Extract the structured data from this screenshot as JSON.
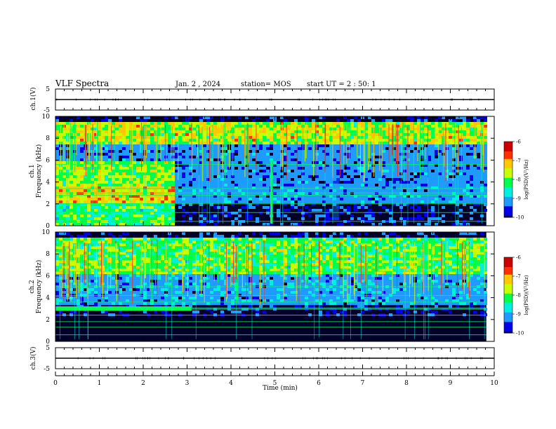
{
  "header": {
    "title": "VLF Spectra",
    "date": "Jan. 2 , 2024",
    "station": "station= MOS",
    "start_ut": "start UT =  2 : 50: 1"
  },
  "colors": {
    "background": "#00002a",
    "colormap": [
      "#00004d",
      "#0000e6",
      "#1f9bff",
      "#00f0e0",
      "#00ff4a",
      "#c8ff00",
      "#ffc800",
      "#ff3000",
      "#cc0000",
      "#ffffff"
    ]
  },
  "chart_data": [
    {
      "type": "line",
      "id": "ch1-voltage",
      "ylabel": "ch.1(V)",
      "ylim": [
        -5,
        5
      ],
      "yticks": [
        "5",
        "-5"
      ],
      "x": [
        0,
        10
      ],
      "values": [
        0,
        0
      ],
      "xlim": [
        0,
        10
      ]
    },
    {
      "type": "heatmap",
      "id": "ch1-spectrogram",
      "ylabel_top": "ch.1",
      "ylabel": "Frequency (kHz)",
      "xlim": [
        0,
        9.82
      ],
      "ylim": [
        0,
        10
      ],
      "yticks": [
        "0",
        "2",
        "4",
        "6",
        "8",
        "10"
      ],
      "colorbar": {
        "label": "log(PSD)(V²/Hz)",
        "range": [
          -10,
          -6
        ],
        "ticks": [
          "-6",
          "-7",
          "-8",
          "-9",
          "-10"
        ]
      },
      "features": {
        "hiss_band_khz": [
          7.5,
          9.5
        ],
        "broadband_noise_until_min": 2.7,
        "noise_band_khz": [
          2.3,
          3.7
        ],
        "vertical_burst_min": 4.92,
        "lines_khz": [
          0.4,
          1.2,
          2.0,
          2.8,
          3.0,
          3.4,
          5.6
        ]
      }
    },
    {
      "type": "heatmap",
      "id": "ch2-spectrogram",
      "ylabel_top": "ch.2",
      "ylabel": "Frequency (kHz)",
      "xlim": [
        0,
        9.82
      ],
      "ylim": [
        0,
        10
      ],
      "yticks": [
        "0",
        "2",
        "4",
        "6",
        "8",
        "10"
      ],
      "colorbar": {
        "label": "log(PSD)(V²/Hz)",
        "range": [
          -10,
          -6
        ],
        "ticks": [
          "-6",
          "-7",
          "-8",
          "-9",
          "-10"
        ]
      },
      "features": {
        "hiss_band_khz": [
          6.3,
          9.5
        ],
        "band_3khz_strong_until_min": 3.1,
        "band_khz": [
          2.8,
          3.2
        ],
        "lines_khz": [
          0.6,
          1.3,
          1.8,
          2.4,
          3.6,
          4.2,
          5.0,
          6.4
        ]
      }
    },
    {
      "type": "line",
      "id": "ch3-voltage",
      "ylabel": "ch.3(V)",
      "ylim": [
        -5,
        5
      ],
      "yticks": [
        "5",
        "-5"
      ],
      "x": [
        0,
        10
      ],
      "values": [
        0,
        0
      ],
      "xlim": [
        0,
        10
      ]
    }
  ],
  "xaxis": {
    "label": "Time (min)",
    "ticks": [
      "0",
      "1",
      "2",
      "3",
      "4",
      "5",
      "6",
      "7",
      "8",
      "9",
      "10"
    ],
    "range": [
      0,
      10
    ]
  }
}
